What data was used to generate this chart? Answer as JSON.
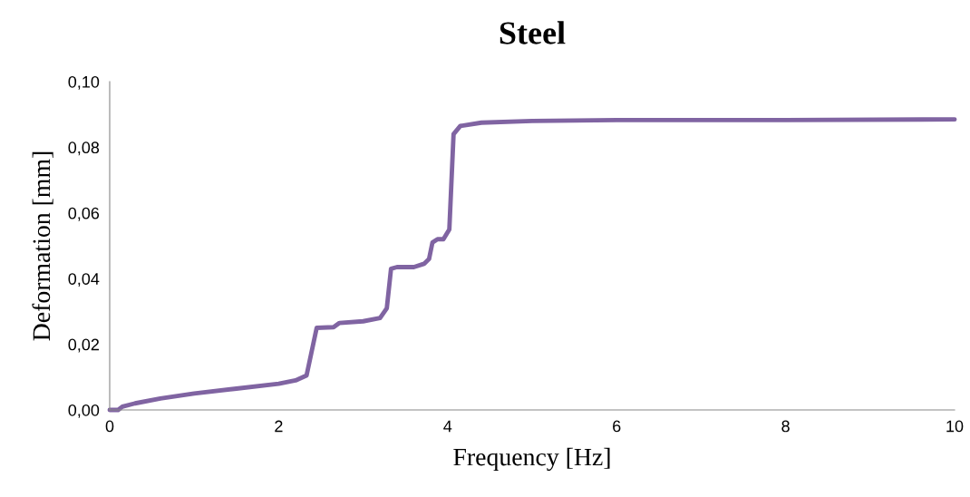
{
  "chart_data": {
    "type": "line",
    "title": "Steel",
    "xlabel": "Frequency [Hz]",
    "ylabel": "Deformation [mm]",
    "series": [
      {
        "color": "#8064a2",
        "x": [
          0,
          0.1,
          0.15,
          0.3,
          0.6,
          1.0,
          1.5,
          2.0,
          2.2,
          2.33,
          2.45,
          2.65,
          2.72,
          3.0,
          3.2,
          3.28,
          3.33,
          3.4,
          3.6,
          3.72,
          3.78,
          3.82,
          3.88,
          3.95,
          4.02,
          4.07,
          4.15,
          4.4,
          5,
          6,
          8,
          10
        ],
        "values": [
          0,
          0,
          0.001,
          0.002,
          0.0035,
          0.005,
          0.0065,
          0.008,
          0.009,
          0.0105,
          0.025,
          0.0252,
          0.0265,
          0.027,
          0.028,
          0.031,
          0.043,
          0.0435,
          0.0435,
          0.0445,
          0.046,
          0.051,
          0.052,
          0.052,
          0.055,
          0.084,
          0.0865,
          0.0875,
          0.088,
          0.0883,
          0.0883,
          0.0885
        ]
      }
    ],
    "xlim": [
      0,
      10
    ],
    "xticks": [
      0,
      2,
      4,
      6,
      8,
      10
    ],
    "ylim": [
      0,
      0.1
    ],
    "yticks": [
      {
        "value": 0,
        "label": "0,00"
      },
      {
        "value": 0.02,
        "label": "0,02"
      },
      {
        "value": 0.04,
        "label": "0,04"
      },
      {
        "value": 0.06,
        "label": "0,06"
      },
      {
        "value": 0.08,
        "label": "0,08"
      },
      {
        "value": 0.1,
        "label": "0,10"
      }
    ],
    "grid": false,
    "marker": "none",
    "line_style": "solid"
  }
}
